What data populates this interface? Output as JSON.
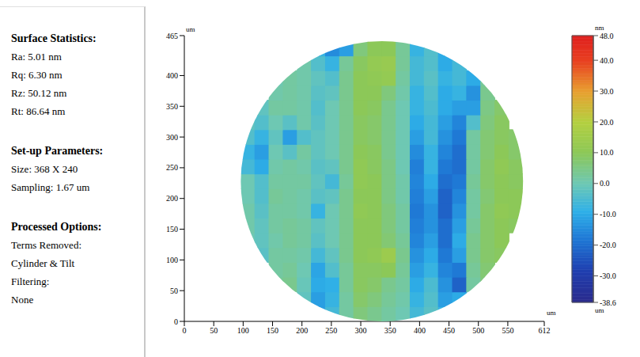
{
  "chart_data": {
    "type": "heatmap",
    "xlim": [
      0,
      612
    ],
    "xticks": [
      0,
      50,
      100,
      150,
      200,
      250,
      300,
      350,
      400,
      450,
      500,
      550,
      612
    ],
    "ylim": [
      0,
      465
    ],
    "yticks": [
      0,
      50,
      100,
      150,
      200,
      250,
      300,
      350,
      400,
      465
    ],
    "x_unit": "um",
    "y_unit": "um",
    "grid": false,
    "heatmap": {
      "x": [
        108,
        132,
        156,
        180,
        204,
        228,
        252,
        276,
        300,
        324,
        348,
        372,
        396,
        420,
        444,
        468,
        492,
        516,
        540,
        564
      ],
      "y": [
        12,
        36,
        60,
        84,
        108,
        132,
        156,
        180,
        204,
        228,
        252,
        276,
        300,
        324,
        348,
        372,
        396,
        420,
        444
      ],
      "z": [
        [
          null,
          null,
          null,
          null,
          null,
          -12,
          -6,
          2,
          6,
          4,
          2,
          0,
          -6,
          -3,
          -8,
          null,
          null,
          null,
          null,
          null
        ],
        [
          null,
          null,
          null,
          null,
          -2,
          -12,
          -8,
          2,
          8,
          6,
          3,
          1,
          -8,
          -4,
          -12,
          -10,
          null,
          null,
          null,
          null
        ],
        [
          null,
          null,
          3,
          4,
          -1,
          -10,
          -9,
          3,
          9,
          8,
          4,
          2,
          -10,
          -5,
          -14,
          -22,
          2,
          6,
          null,
          null
        ],
        [
          null,
          null,
          2,
          3,
          0,
          -11,
          -4,
          3,
          9,
          9,
          10,
          3,
          -12,
          -8,
          -16,
          -18,
          3,
          7,
          null,
          null
        ],
        [
          null,
          -3,
          2,
          2,
          1,
          -6,
          -2,
          4,
          10,
          11,
          14,
          4,
          -14,
          -10,
          -18,
          -12,
          4,
          8,
          9,
          null
        ],
        [
          0,
          -2,
          1,
          3,
          2,
          -3,
          0,
          4,
          10,
          10,
          7,
          3,
          -16,
          -12,
          -20,
          -10,
          4,
          8,
          10,
          null
        ],
        [
          1,
          -2,
          2,
          3,
          2,
          -2,
          0,
          4,
          10,
          10,
          6,
          2,
          -17,
          -14,
          -20,
          -12,
          3,
          8,
          10,
          9
        ],
        [
          1,
          -3,
          2,
          2,
          1,
          -8,
          0,
          4,
          11,
          10,
          6,
          2,
          -18,
          -14,
          -22,
          -14,
          2,
          8,
          11,
          10
        ],
        [
          0,
          -4,
          3,
          2,
          1,
          -3,
          -2,
          4,
          10,
          10,
          5,
          1,
          -17,
          -12,
          -22,
          -16,
          2,
          7,
          10,
          10
        ],
        [
          0,
          -4,
          2,
          2,
          2,
          -2,
          -6,
          3,
          11,
          10,
          5,
          1,
          -16,
          -10,
          -20,
          -18,
          3,
          8,
          10,
          9
        ],
        [
          -6,
          -10,
          1,
          2,
          1,
          -3,
          -2,
          4,
          11,
          9,
          5,
          0,
          -17,
          -8,
          -18,
          -20,
          2,
          8,
          11,
          9
        ],
        [
          -8,
          -12,
          0,
          -3,
          2,
          -2,
          0,
          4,
          10,
          9,
          4,
          0,
          -15,
          -8,
          -16,
          -20,
          2,
          7,
          10,
          8
        ],
        [
          -4,
          -8,
          -2,
          -12,
          -4,
          -2,
          0,
          4,
          9,
          8,
          4,
          0,
          -12,
          -6,
          -14,
          -18,
          2,
          7,
          9,
          8
        ],
        [
          -2,
          -4,
          0,
          -3,
          1,
          -3,
          0,
          4,
          9,
          8,
          4,
          0,
          -10,
          -6,
          -12,
          -16,
          -4,
          6,
          9,
          null
        ],
        [
          null,
          -2,
          2,
          2,
          1,
          -4,
          0,
          4,
          10,
          9,
          4,
          0,
          -8,
          -5,
          -10,
          -12,
          -12,
          5,
          8,
          null
        ],
        [
          null,
          null,
          1,
          2,
          1,
          -3,
          -2,
          4,
          10,
          10,
          6,
          1,
          -8,
          -4,
          -10,
          -8,
          -14,
          4,
          null,
          null
        ],
        [
          null,
          null,
          0,
          2,
          1,
          -2,
          -4,
          4,
          10,
          11,
          12,
          2,
          -6,
          -3,
          -8,
          -6,
          -10,
          3,
          null,
          null
        ],
        [
          null,
          null,
          null,
          null,
          1,
          -4,
          -8,
          3,
          9,
          12,
          13,
          3,
          -6,
          -4,
          -10,
          -6,
          null,
          null,
          null,
          null
        ],
        [
          null,
          null,
          null,
          null,
          null,
          -8,
          -15,
          -12,
          6,
          10,
          10,
          3,
          -8,
          -4,
          -10,
          null,
          null,
          null,
          null,
          null
        ]
      ]
    },
    "colorbar": {
      "range": [
        -38.6,
        48
      ],
      "ticks": [
        {
          "value": 48,
          "label": "48.0"
        },
        {
          "value": 40,
          "label": "40.0"
        },
        {
          "value": 30,
          "label": "30.0"
        },
        {
          "value": 20,
          "label": "20.0"
        },
        {
          "value": 10,
          "label": "10.0"
        },
        {
          "value": 0,
          "label": "0.0"
        },
        {
          "value": -10,
          "label": "-10.0"
        },
        {
          "value": -20,
          "label": "-20.0"
        },
        {
          "value": -30,
          "label": "-30.0"
        },
        -38.6
      ],
      "unit_top": "nm",
      "unit_bottom": "um"
    }
  },
  "side_panel": {
    "sections": [
      {
        "heading": "Surface Statistics:",
        "lines": [
          "Ra: 5.01 nm",
          "Rq: 6.30 nm",
          "Rz: 50.12 nm",
          "Rt: 86.64 nm"
        ]
      },
      {
        "heading": "Set-up Parameters:",
        "lines": [
          "Size: 368 X 240",
          "Sampling: 1.67 um"
        ]
      },
      {
        "heading": "Processed Options:",
        "lines": [
          "Terms Removed:",
          "Cylinder & Tilt",
          "Filtering:",
          "None"
        ]
      }
    ]
  }
}
